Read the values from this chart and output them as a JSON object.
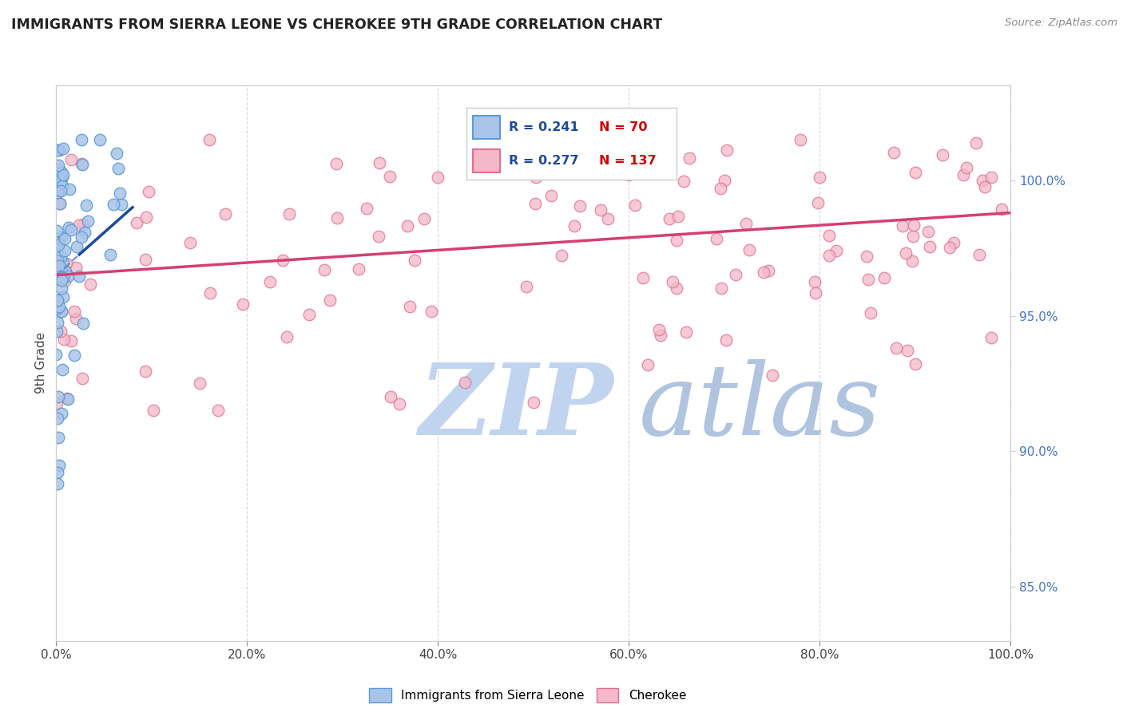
{
  "title": "IMMIGRANTS FROM SIERRA LEONE VS CHEROKEE 9TH GRADE CORRELATION CHART",
  "source": "Source: ZipAtlas.com",
  "ylabel": "9th Grade",
  "legend_blue_label": "Immigrants from Sierra Leone",
  "legend_pink_label": "Cherokee",
  "legend_R_blue": "R = 0.241",
  "legend_N_blue": "N = 70",
  "legend_R_pink": "R = 0.277",
  "legend_N_pink": "N = 137",
  "blue_color": "#a8c4e8",
  "blue_edge_color": "#5b9bd5",
  "pink_color": "#f4b8c8",
  "pink_edge_color": "#e07090",
  "blue_line_color": "#1a4a9e",
  "blue_line_dash_color": "#7090c8",
  "pink_line_color": "#d44070",
  "watermark_zip_color": "#c8d8f0",
  "watermark_atlas_color": "#b8c8e8",
  "background_color": "#ffffff",
  "grid_color": "#cccccc",
  "right_tick_color": "#4472c4",
  "xmin": 0.0,
  "xmax": 100.0,
  "ymin": 83.0,
  "ymax": 103.5,
  "right_ytick_vals": [
    100.0,
    95.0,
    90.0,
    85.0
  ],
  "xtick_vals": [
    0,
    20,
    40,
    60,
    80,
    100
  ],
  "xtick_labels": [
    "0.0%",
    "20.0%",
    "40.0%",
    "60.0%",
    "80.0%",
    "100.0%"
  ]
}
